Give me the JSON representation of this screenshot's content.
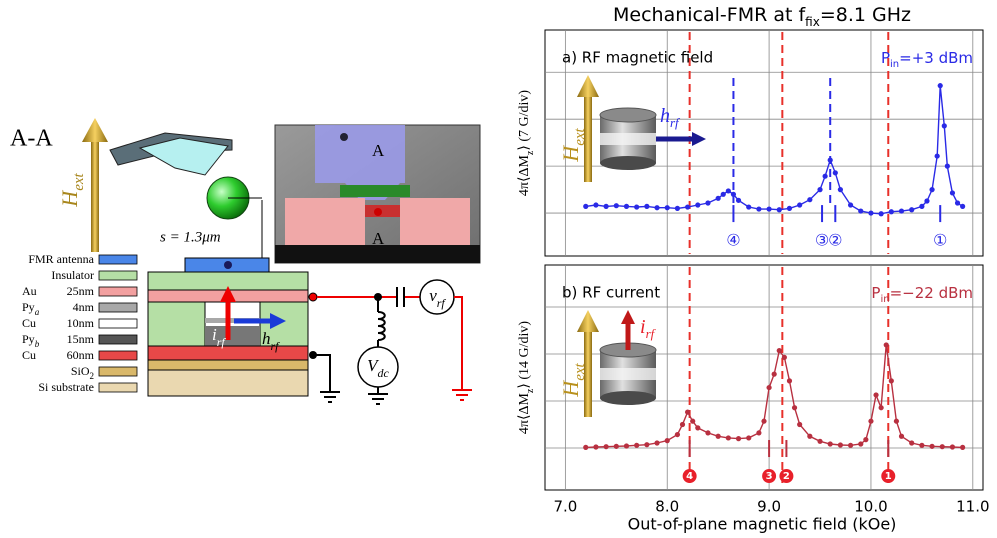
{
  "diagram": {
    "section": "A-A",
    "field": {
      "text": "H",
      "sub": "ext"
    },
    "spacing": "s = 1.3μm",
    "sem_labels": [
      "A",
      "A"
    ],
    "layers": [
      {
        "name": "FMR antenna",
        "color": "#4a86e8"
      },
      {
        "name": "Insulator",
        "color": "#b5dfa5"
      },
      {
        "name": "Au",
        "thickness": "25nm",
        "color": "#f2a0a0"
      },
      {
        "name": "Py",
        "sub": "a",
        "thickness": "4nm",
        "color": "#a8a8a8"
      },
      {
        "name": "Cu",
        "thickness": "10nm",
        "color": "#ffffff"
      },
      {
        "name": "Py",
        "sub": "b",
        "thickness": "15nm",
        "color": "#555555"
      },
      {
        "name": "Cu",
        "thickness": "60nm",
        "color": "#e84848"
      },
      {
        "name": "SiO",
        "sub": "2",
        "color": "#d9b86a"
      },
      {
        "name": "Si substrate",
        "color": "#ead8b0"
      }
    ],
    "current": {
      "text": "i",
      "sub": "rf"
    },
    "rf_field": {
      "text": "h",
      "sub": "rf"
    },
    "dc_source": {
      "text": "V",
      "sub": "dc"
    },
    "rf_source": {
      "text": "v",
      "sub": "rf"
    }
  },
  "chart_data": [
    {
      "type": "line",
      "title": {
        "text": "Mechanical-FMR at f",
        "sub": "fix",
        "after": "=8.1 GHz"
      },
      "label": "a) RF magnetic field",
      "power": {
        "text": "P",
        "sub": "in",
        "after": "=+3 dBm"
      },
      "ylabel": {
        "text": "4π⟨ΔM",
        "sub": "z",
        "after": "⟩ (7 G/div)"
      },
      "xlim": [
        6.8,
        11.1
      ],
      "ylim": [
        -6.4,
        27.3
      ],
      "xgrid": [
        7,
        8,
        9,
        10,
        11
      ],
      "ygrid": [
        0,
        7,
        14,
        21
      ],
      "series": [
        {
          "color": "#2a2ae6",
          "x": [
            7.2,
            7.3,
            7.4,
            7.5,
            7.6,
            7.7,
            7.8,
            7.9,
            8.0,
            8.1,
            8.2,
            8.3,
            8.4,
            8.5,
            8.55,
            8.6,
            8.65,
            8.7,
            8.8,
            8.9,
            9.0,
            9.1,
            9.2,
            9.3,
            9.4,
            9.5,
            9.55,
            9.6,
            9.65,
            9.7,
            9.8,
            9.9,
            10.0,
            10.1,
            10.2,
            10.3,
            10.4,
            10.5,
            10.55,
            10.6,
            10.65,
            10.68,
            10.72,
            10.75,
            10.8,
            10.85,
            10.9
          ],
          "values": [
            1.0,
            1.2,
            1.0,
            1.1,
            1.0,
            0.9,
            1.0,
            0.8,
            0.8,
            0.7,
            0.9,
            1.2,
            1.5,
            2.2,
            2.8,
            3.3,
            2.8,
            1.9,
            0.9,
            0.6,
            0.6,
            0.5,
            0.7,
            1.2,
            2.0,
            3.5,
            5.5,
            7.9,
            6.0,
            3.5,
            1.2,
            0.3,
            0.0,
            -0.1,
            0.2,
            0.3,
            0.5,
            1.0,
            1.8,
            3.5,
            8.5,
            19.0,
            13.0,
            7.0,
            3.0,
            1.5,
            1.0
          ]
        }
      ],
      "reference_lines": [
        {
          "x": 8.22,
          "color": "#e8302a"
        },
        {
          "x": 9.13,
          "color": "#e8302a"
        },
        {
          "x": 10.17,
          "color": "#e8302a"
        },
        {
          "x": 8.65,
          "color": "#2a2ae6"
        },
        {
          "x": 9.6,
          "color": "#2a2ae6"
        }
      ],
      "markers": [
        {
          "x": 10.68,
          "label": "①"
        },
        {
          "x": 9.65,
          "label": "②"
        },
        {
          "x": 9.52,
          "label": "③"
        },
        {
          "x": 8.65,
          "label": "④"
        }
      ],
      "inset": {
        "field": {
          "text": "H",
          "sub": "ext"
        },
        "drive": {
          "text": "h",
          "sub": "rf"
        },
        "drive_direction": "right"
      }
    },
    {
      "type": "line",
      "label": "b) RF current",
      "power": {
        "text": "P",
        "sub": "in",
        "after": "=−22 dBm"
      },
      "ylabel": {
        "text": "4π⟨ΔM",
        "sub": "z",
        "after": "⟩ (14 G/div)"
      },
      "xlabel": "Out-of-plane magnetic field (kOe)",
      "xlim": [
        6.8,
        11.1
      ],
      "ylim": [
        -12.5,
        54.5
      ],
      "xticks": [
        {
          "value": 7,
          "label": "7.0"
        },
        {
          "value": 8,
          "label": "8.0"
        },
        {
          "value": 9,
          "label": "9.0"
        },
        {
          "value": 10,
          "label": "10.0"
        },
        {
          "value": 11,
          "label": "11.0"
        }
      ],
      "ygrid": [
        0,
        14,
        28,
        42
      ],
      "series": [
        {
          "color": "#b83040",
          "x": [
            7.2,
            7.3,
            7.4,
            7.5,
            7.6,
            7.7,
            7.8,
            7.9,
            8.0,
            8.1,
            8.15,
            8.2,
            8.25,
            8.3,
            8.4,
            8.5,
            8.6,
            8.7,
            8.8,
            8.9,
            8.95,
            9.0,
            9.05,
            9.1,
            9.15,
            9.2,
            9.25,
            9.3,
            9.4,
            9.5,
            9.6,
            9.7,
            9.8,
            9.9,
            9.95,
            10.0,
            10.05,
            10.1,
            10.15,
            10.2,
            10.25,
            10.3,
            10.4,
            10.5,
            10.6,
            10.7,
            10.8,
            10.9
          ],
          "values": [
            0.2,
            0.3,
            0.4,
            0.5,
            0.6,
            0.8,
            1.0,
            1.5,
            2.2,
            4.0,
            7.0,
            10.7,
            8.0,
            6.0,
            4.5,
            3.5,
            3.0,
            2.8,
            3.0,
            4.5,
            8.0,
            18.0,
            22.0,
            29.0,
            27.0,
            20.0,
            12.0,
            7.0,
            3.5,
            2.0,
            1.2,
            0.9,
            0.8,
            1.2,
            2.5,
            8.0,
            15.8,
            12.0,
            30.7,
            20.0,
            8.0,
            3.5,
            1.5,
            0.8,
            0.5,
            0.4,
            0.3,
            0.2
          ]
        }
      ],
      "reference_lines": [
        {
          "x": 8.22,
          "color": "#e8302a"
        },
        {
          "x": 9.13,
          "color": "#e8302a"
        },
        {
          "x": 10.17,
          "color": "#e8302a"
        }
      ],
      "markers": [
        {
          "x": 10.17,
          "label": "1"
        },
        {
          "x": 9.17,
          "label": "2"
        },
        {
          "x": 9.0,
          "label": "3"
        },
        {
          "x": 8.22,
          "label": "4"
        }
      ],
      "marker_circles": true,
      "inset": {
        "field": {
          "text": "H",
          "sub": "ext"
        },
        "drive": {
          "text": "i",
          "sub": "rf"
        },
        "drive_direction": "up"
      }
    }
  ]
}
